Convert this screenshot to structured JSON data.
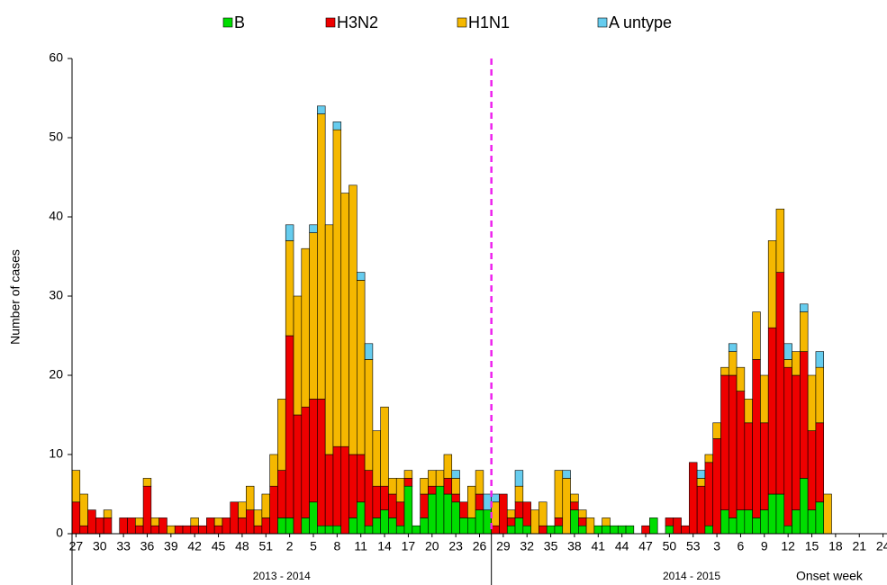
{
  "chart_data": {
    "type": "stacked_bar",
    "y_label": "Number of cases",
    "x_label": "Onset week",
    "season_labels": [
      "2013 - 2014",
      "2014 - 2015"
    ],
    "ylim": [
      0,
      60
    ],
    "yticks": [
      0,
      10,
      20,
      30,
      40,
      50,
      60
    ],
    "grid": false,
    "legend_position": "top",
    "categories": [
      "27",
      null,
      null,
      "30",
      null,
      null,
      "33",
      null,
      null,
      "36",
      null,
      null,
      "39",
      null,
      null,
      "42",
      null,
      null,
      "45",
      null,
      null,
      "48",
      null,
      null,
      "51",
      null,
      null,
      "2",
      null,
      null,
      "5",
      null,
      null,
      "8",
      null,
      null,
      "11",
      null,
      null,
      "14",
      null,
      null,
      "17",
      null,
      null,
      "20",
      null,
      null,
      "23",
      null,
      null,
      "26",
      null,
      null,
      "29",
      null,
      null,
      "32",
      null,
      null,
      "35",
      null,
      null,
      "38",
      null,
      null,
      "41",
      null,
      null,
      "44",
      null,
      null,
      "47",
      null,
      null,
      "50",
      null,
      null,
      "53",
      null,
      null,
      "3",
      null,
      null,
      "6",
      null,
      null,
      "9",
      null,
      null,
      "12",
      null,
      null,
      "15",
      null,
      null,
      "18",
      null,
      null,
      "21",
      null,
      null,
      "24"
    ],
    "series": [
      {
        "name": "B",
        "color": "#00dd00",
        "values": [
          0,
          0,
          0,
          0,
          0,
          0,
          0,
          0,
          0,
          0,
          0,
          0,
          0,
          0,
          0,
          0,
          0,
          0,
          0,
          0,
          0,
          0,
          0,
          0,
          0,
          0,
          2,
          2,
          0,
          2,
          4,
          1,
          1,
          1,
          0,
          2,
          4,
          1,
          2,
          3,
          2,
          1,
          6,
          1,
          2,
          5,
          6,
          5,
          4,
          2,
          2,
          3,
          3,
          0,
          0,
          1,
          2,
          1,
          0,
          0,
          1,
          1,
          0,
          3,
          1,
          0,
          1,
          1,
          1,
          1,
          1,
          0,
          0,
          2,
          0,
          1,
          0,
          0,
          0,
          0,
          1,
          0,
          3,
          2,
          3,
          3,
          2,
          3,
          5,
          5,
          1,
          3,
          7,
          3,
          4,
          0,
          0,
          0,
          0,
          0,
          0,
          0,
          0
        ]
      },
      {
        "name": "H3N2",
        "color": "#ee0000",
        "values": [
          4,
          1,
          3,
          2,
          2,
          0,
          2,
          2,
          1,
          6,
          1,
          2,
          0,
          1,
          1,
          1,
          1,
          2,
          1,
          2,
          4,
          2,
          3,
          1,
          2,
          6,
          6,
          23,
          15,
          14,
          13,
          16,
          9,
          10,
          11,
          8,
          6,
          7,
          4,
          3,
          3,
          3,
          1,
          0,
          3,
          1,
          0,
          2,
          1,
          2,
          0,
          2,
          0,
          1,
          5,
          1,
          2,
          3,
          0,
          1,
          0,
          1,
          0,
          1,
          1,
          0,
          0,
          0,
          0,
          0,
          0,
          0,
          1,
          0,
          0,
          1,
          2,
          1,
          9,
          6,
          8,
          12,
          17,
          18,
          15,
          11,
          20,
          11,
          21,
          28,
          20,
          17,
          16,
          10,
          10,
          0,
          0,
          0,
          0,
          0,
          0,
          0,
          0
        ]
      },
      {
        "name": "H1N1",
        "color": "#f5b800",
        "values": [
          4,
          4,
          0,
          0,
          1,
          0,
          0,
          0,
          1,
          1,
          1,
          0,
          1,
          0,
          0,
          1,
          0,
          0,
          1,
          0,
          0,
          2,
          3,
          2,
          3,
          4,
          9,
          12,
          15,
          20,
          21,
          36,
          29,
          40,
          32,
          34,
          22,
          14,
          7,
          10,
          2,
          3,
          1,
          0,
          2,
          2,
          2,
          3,
          2,
          0,
          4,
          3,
          0,
          3,
          0,
          1,
          2,
          0,
          3,
          3,
          0,
          6,
          7,
          1,
          1,
          2,
          0,
          1,
          0,
          0,
          0,
          0,
          0,
          0,
          0,
          0,
          0,
          0,
          0,
          1,
          1,
          2,
          1,
          3,
          3,
          3,
          6,
          6,
          11,
          8,
          1,
          3,
          5,
          7,
          7,
          5,
          0,
          0,
          0,
          0,
          0,
          0,
          0
        ]
      },
      {
        "name": "A untype",
        "color": "#66ccee",
        "values": [
          0,
          0,
          0,
          0,
          0,
          0,
          0,
          0,
          0,
          0,
          0,
          0,
          0,
          0,
          0,
          0,
          0,
          0,
          0,
          0,
          0,
          0,
          0,
          0,
          0,
          0,
          0,
          2,
          0,
          0,
          1,
          1,
          0,
          1,
          0,
          0,
          1,
          2,
          0,
          0,
          0,
          0,
          0,
          0,
          0,
          0,
          0,
          0,
          1,
          0,
          0,
          0,
          2,
          1,
          0,
          0,
          2,
          0,
          0,
          0,
          0,
          0,
          1,
          0,
          0,
          0,
          0,
          0,
          0,
          0,
          0,
          0,
          0,
          0,
          0,
          0,
          0,
          0,
          0,
          1,
          0,
          0,
          0,
          1,
          0,
          0,
          0,
          0,
          0,
          0,
          2,
          0,
          1,
          0,
          2,
          0,
          0,
          0,
          0,
          0,
          0,
          0,
          0
        ]
      }
    ]
  }
}
